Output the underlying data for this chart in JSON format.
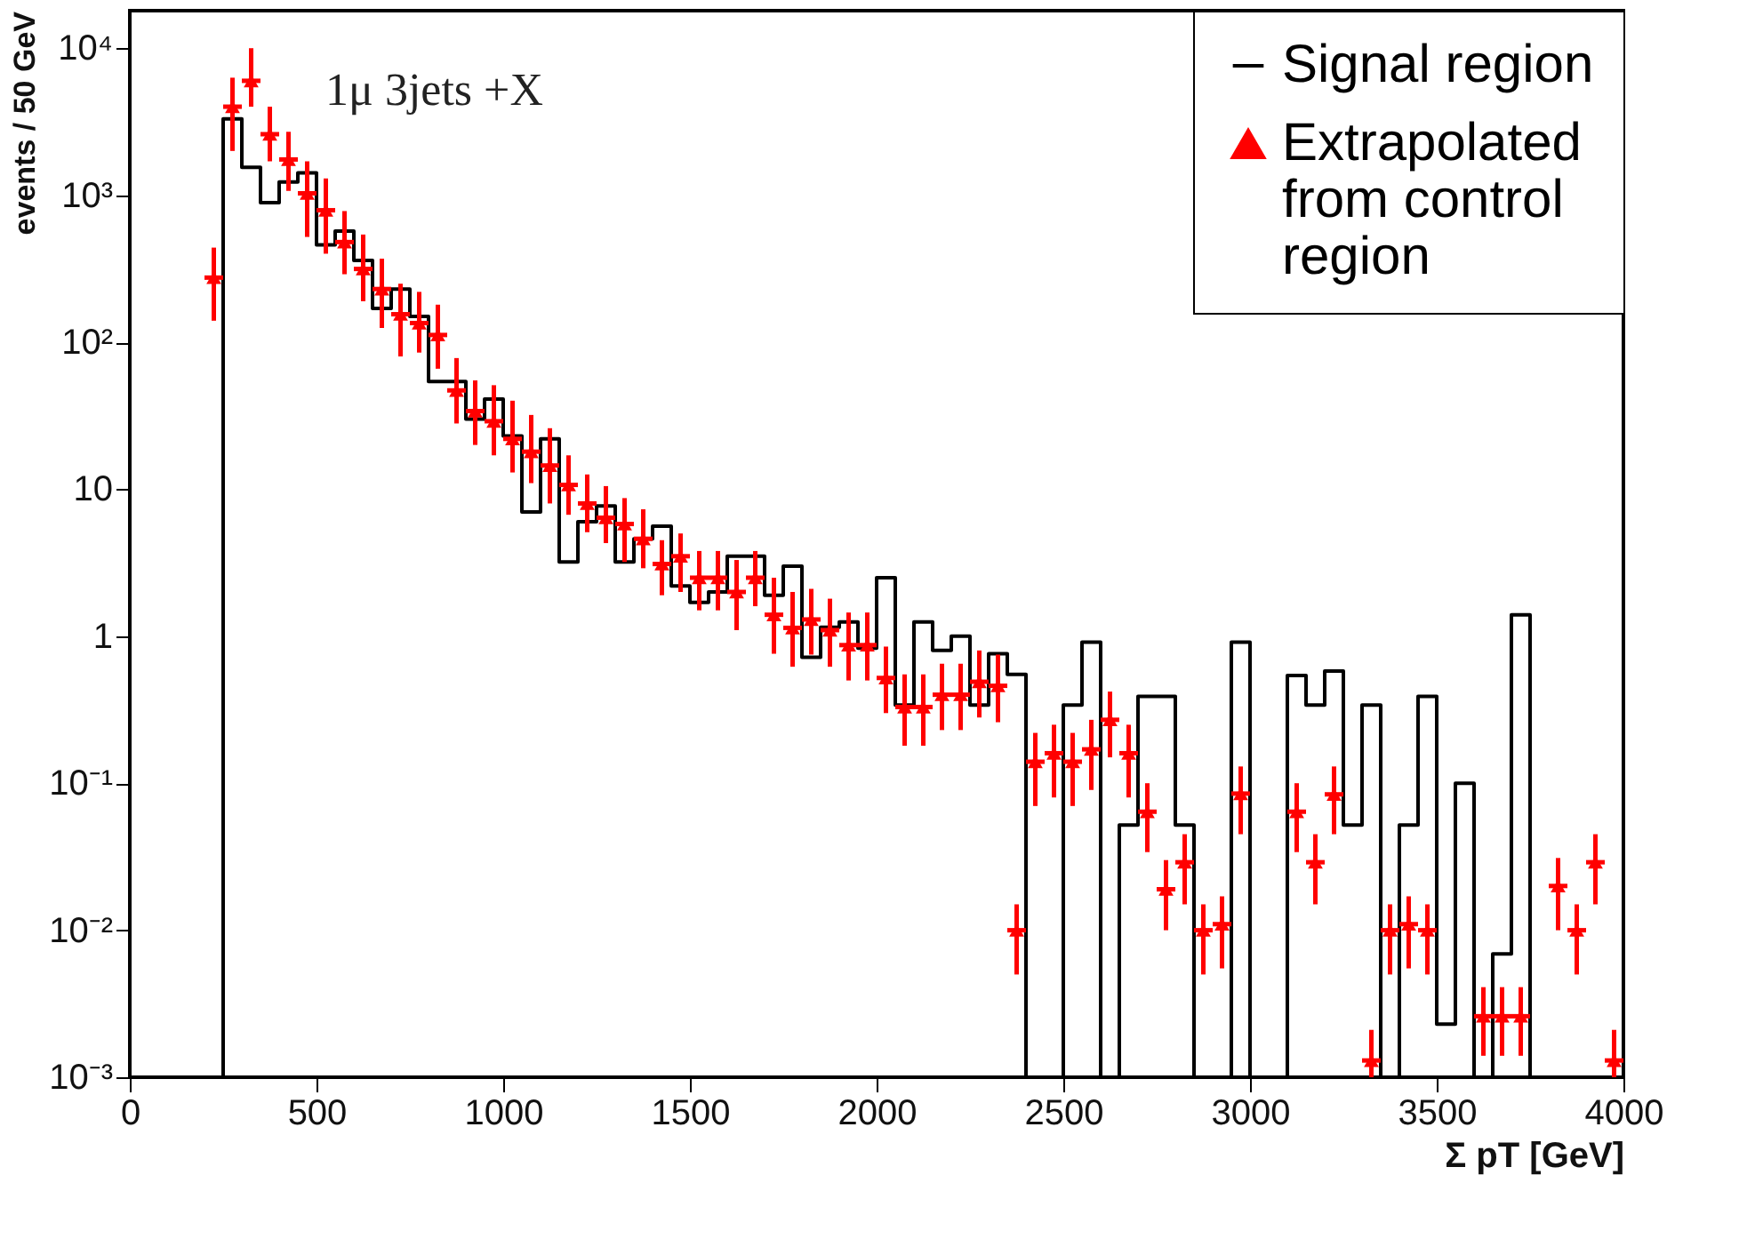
{
  "chart_data": {
    "type": "histogram",
    "xlabel": "Σ pT [GeV]",
    "ylabel": "events / 50 GeV",
    "annotations": [
      "1μ 3jets +X"
    ],
    "log": "y",
    "grid": false,
    "legend": "top right",
    "xlim": [
      0,
      4000
    ],
    "xticks": [
      0,
      500,
      1000,
      1500,
      2000,
      2500,
      3000,
      3500,
      4000
    ],
    "ylim": [
      0.001,
      18000
    ],
    "yticks": [
      {
        "value": 0.001,
        "label": "10⁻³"
      },
      {
        "value": 0.01,
        "label": "10⁻²"
      },
      {
        "value": 0.1,
        "label": "10⁻¹"
      },
      1,
      10,
      {
        "value": 100,
        "label": "10²"
      },
      {
        "value": 1000,
        "label": "10³"
      },
      {
        "value": 10000,
        "label": "10⁴"
      }
    ],
    "bins": [
      250,
      300,
      350,
      400,
      450,
      500,
      550,
      600,
      650,
      700,
      750,
      800,
      850,
      900,
      950,
      1000,
      1050,
      1100,
      1150,
      1200,
      1250,
      1300,
      1350,
      1400,
      1450,
      1500,
      1550,
      1600,
      1650,
      1700,
      1750,
      1800,
      1850,
      1900,
      1950,
      2000,
      2050,
      2100,
      2150,
      2200,
      2250,
      2300,
      2350,
      2400,
      2450,
      2500,
      2550,
      2600,
      2650,
      2700,
      2750,
      2800,
      2850,
      2900,
      2950,
      3000,
      3050,
      3100,
      3150,
      3200,
      3250,
      3300,
      3350,
      3400,
      3450,
      3500,
      3550,
      3600,
      3650,
      3700,
      3750
    ],
    "series": [
      {
        "name": "Signal region",
        "color": "#000000",
        "line_style": "solid",
        "values": [
          3300,
          1550,
          890,
          1230,
          1420,
          460,
          570,
          360,
          170,
          230,
          150,
          54,
          54,
          30,
          41,
          23,
          7,
          22,
          3.2,
          6,
          7.7,
          3.2,
          4.6,
          5.6,
          2.2,
          1.7,
          2.0,
          3.5,
          3.5,
          1.9,
          3.0,
          0.72,
          1.15,
          1.25,
          0.83,
          2.5,
          0.34,
          1.25,
          0.8,
          1.0,
          0.34,
          0.76,
          0.55,
          null,
          null,
          0.34,
          0.91,
          null,
          0.052,
          0.39,
          0.39,
          0.052,
          null,
          null,
          0.91,
          null,
          null,
          0.54,
          0.34,
          0.58,
          0.052,
          0.34,
          null,
          0.052,
          0.39,
          0.0023,
          0.1,
          null,
          0.0069,
          1.4
        ]
      },
      {
        "name": "Extrapolated from control region",
        "type": "scatter",
        "color": "#ff0000",
        "marker": "triangle",
        "x": [
          225,
          275,
          325,
          375,
          425,
          475,
          525,
          575,
          625,
          675,
          725,
          775,
          825,
          875,
          925,
          975,
          1025,
          1075,
          1125,
          1175,
          1225,
          1275,
          1325,
          1375,
          1425,
          1475,
          1525,
          1575,
          1625,
          1675,
          1725,
          1775,
          1825,
          1875,
          1925,
          1975,
          2025,
          2075,
          2125,
          2175,
          2225,
          2275,
          2325,
          2375,
          2425,
          2475,
          2525,
          2575,
          2625,
          2675,
          2725,
          2775,
          2825,
          2875,
          2925,
          2975,
          3125,
          3175,
          3225,
          3325,
          3375,
          3425,
          3475,
          3625,
          3675,
          3725,
          3825,
          3875,
          3925,
          3975
        ],
        "values": [
          275,
          4000,
          6000,
          2600,
          1750,
          1030,
          790,
          480,
          315,
          230,
          155,
          135,
          112,
          47,
          34,
          29,
          22,
          18,
          14.5,
          10.7,
          8,
          6.4,
          5.8,
          4.6,
          3.1,
          3.5,
          2.5,
          2.5,
          2.0,
          2.5,
          1.4,
          1.14,
          1.3,
          1.1,
          0.87,
          0.87,
          0.52,
          0.33,
          0.33,
          0.4,
          0.4,
          0.49,
          0.46,
          0.01,
          0.14,
          0.16,
          0.14,
          0.17,
          0.27,
          0.16,
          0.064,
          0.019,
          0.029,
          0.01,
          0.011,
          0.085,
          0.064,
          0.029,
          0.084,
          0.0013,
          0.01,
          0.011,
          0.01,
          0.0026,
          0.0026,
          0.0026,
          0.02,
          0.01,
          0.029,
          0.0013
        ],
        "errors": [
          [
            140,
            440
          ],
          [
            2000,
            6300
          ],
          [
            4000,
            10000
          ],
          [
            1700,
            4000
          ],
          [
            1070,
            2700
          ],
          [
            520,
            1700
          ],
          [
            400,
            1300
          ],
          [
            290,
            780
          ],
          [
            190,
            540
          ],
          [
            125,
            370
          ],
          [
            80,
            250
          ],
          [
            85,
            220
          ],
          [
            66,
            180
          ],
          [
            28,
            78
          ],
          [
            20,
            55
          ],
          [
            17,
            51
          ],
          [
            13,
            40
          ],
          [
            11,
            32
          ],
          [
            8,
            26
          ],
          [
            6.7,
            17
          ],
          [
            5.1,
            12.6
          ],
          [
            4.3,
            10.5
          ],
          [
            3.2,
            8.7
          ],
          [
            2.9,
            7.3
          ],
          [
            1.9,
            4.5
          ],
          [
            2,
            5
          ],
          [
            1.5,
            3.8
          ],
          [
            1.5,
            3.8
          ],
          [
            1.1,
            3.3
          ],
          [
            1.6,
            3.8
          ],
          [
            0.76,
            2.5
          ],
          [
            0.62,
            2.0
          ],
          [
            0.75,
            2.1
          ],
          [
            0.62,
            1.8
          ],
          [
            0.5,
            1.45
          ],
          [
            0.5,
            1.45
          ],
          [
            0.3,
            0.85
          ],
          [
            0.18,
            0.55
          ],
          [
            0.18,
            0.55
          ],
          [
            0.23,
            0.65
          ],
          [
            0.23,
            0.65
          ],
          [
            0.28,
            0.8
          ],
          [
            0.26,
            0.75
          ],
          [
            0.005,
            0.015
          ],
          [
            0.07,
            0.22
          ],
          [
            0.08,
            0.25
          ],
          [
            0.07,
            0.22
          ],
          [
            0.09,
            0.27
          ],
          [
            0.15,
            0.42
          ],
          [
            0.08,
            0.25
          ],
          [
            0.034,
            0.1
          ],
          [
            0.01,
            0.03
          ],
          [
            0.015,
            0.045
          ],
          [
            0.005,
            0.015
          ],
          [
            0.0055,
            0.017
          ],
          [
            0.045,
            0.13
          ],
          [
            0.034,
            0.1
          ],
          [
            0.015,
            0.045
          ],
          [
            0.045,
            0.13
          ],
          [
            0.001,
            0.0021
          ],
          [
            0.005,
            0.015
          ],
          [
            0.0055,
            0.017
          ],
          [
            0.005,
            0.015
          ],
          [
            0.0014,
            0.0041
          ],
          [
            0.0014,
            0.0041
          ],
          [
            0.0014,
            0.0041
          ],
          [
            0.01,
            0.031
          ],
          [
            0.005,
            0.015
          ],
          [
            0.015,
            0.045
          ],
          [
            0.001,
            0.0021
          ]
        ],
        "xerrors": [
          25,
          25,
          25,
          25,
          25,
          25,
          25,
          25,
          25,
          25,
          25,
          25,
          25,
          25,
          25,
          25,
          25,
          25,
          25,
          25,
          25,
          25,
          25,
          25,
          25,
          25,
          25,
          25,
          25,
          25,
          25,
          25,
          25,
          25,
          25,
          25,
          25,
          25,
          25,
          25,
          25,
          25,
          25,
          25,
          25,
          25,
          25,
          25,
          25,
          25,
          25,
          25,
          25,
          25,
          25,
          25,
          25,
          25,
          25,
          25,
          25,
          25,
          25,
          25,
          25,
          25,
          25,
          25,
          25,
          25
        ]
      }
    ]
  }
}
